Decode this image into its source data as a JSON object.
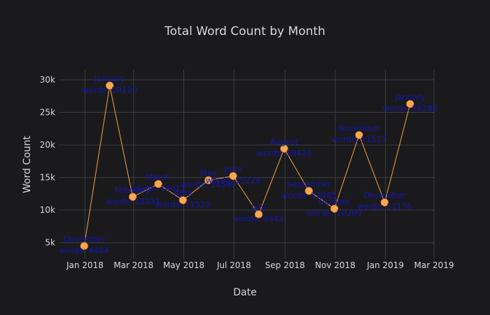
{
  "chart_data": {
    "type": "line",
    "title": "Total Word Count by Month",
    "xlabel": "Date",
    "ylabel": "Word Count",
    "xlim": [
      "2017-12-01",
      "2019-03-01"
    ],
    "ylim": [
      2500,
      31500
    ],
    "grid": true,
    "x_ticks": [
      "Jan 2018",
      "Mar 2018",
      "May 2018",
      "Jul 2018",
      "Sep 2018",
      "Nov 2018",
      "Jan 2019",
      "Mar 2019"
    ],
    "y_ticks": [
      "5k",
      "10k",
      "15k",
      "20k",
      "25k",
      "30k"
    ],
    "colors": {
      "line": "#f5a142",
      "marker": "#ffa64d",
      "label": "#1515b0",
      "background": "#1a1a1d"
    },
    "points": [
      {
        "x": "2017-12-31",
        "y": 4484,
        "month": "December",
        "words": "words: 4484"
      },
      {
        "x": "2018-01-31",
        "y": 29110,
        "month": "January",
        "words": "words: 29110"
      },
      {
        "x": "2018-02-28",
        "y": 12031,
        "month": "February",
        "words": "words: 12031"
      },
      {
        "x": "2018-03-31",
        "y": 14011,
        "month": "March",
        "words": "words: 14011"
      },
      {
        "x": "2018-04-30",
        "y": 11520,
        "month": "April",
        "words": "words: 11520"
      },
      {
        "x": "2018-05-31",
        "y": 14590,
        "month": "May",
        "words": "words: 14590"
      },
      {
        "x": "2018-06-30",
        "y": 15224,
        "month": "June",
        "words": "words: 15224"
      },
      {
        "x": "2018-07-31",
        "y": 9343,
        "month": "July",
        "words": "words: 9343"
      },
      {
        "x": "2018-08-31",
        "y": 19426,
        "month": "August",
        "words": "words: 19426"
      },
      {
        "x": "2018-09-30",
        "y": 12945,
        "month": "September",
        "words": "words: 12945"
      },
      {
        "x": "2018-10-31",
        "y": 10209,
        "month": "October",
        "words": "words: 10209"
      },
      {
        "x": "2018-11-30",
        "y": 21517,
        "month": "November",
        "words": "words: 21517"
      },
      {
        "x": "2018-12-31",
        "y": 11176,
        "month": "December",
        "words": "words: 11176"
      },
      {
        "x": "2019-01-31",
        "y": 26286,
        "month": "January",
        "words": "words: 26286"
      }
    ]
  }
}
